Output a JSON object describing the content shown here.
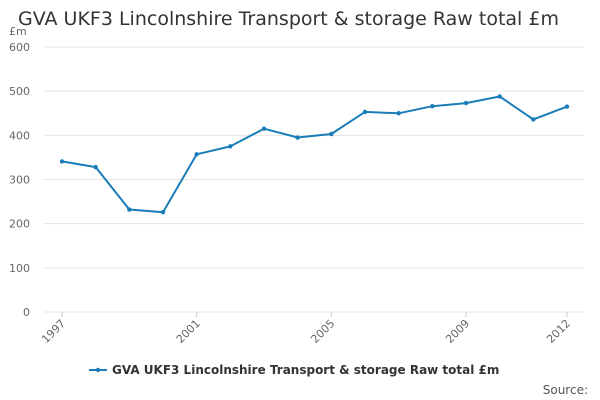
{
  "title": "GVA UKF3 Lincolnshire Transport & storage Raw total £m",
  "unit": "£m",
  "source": "Source:",
  "colors": {
    "series": "#1a7db8",
    "grid": "#e6e6e6",
    "axis_text": "#666666"
  },
  "chart_data": {
    "type": "line",
    "title": "GVA UKF3 Lincolnshire Transport & storage Raw total £m",
    "xlabel": "",
    "ylabel": "£m",
    "xlim": [
      1997,
      2012
    ],
    "ylim": [
      0,
      600
    ],
    "y_ticks": [
      0,
      100,
      200,
      300,
      400,
      500,
      600
    ],
    "x_ticks": [
      "1997",
      "2001",
      "2005",
      "2009",
      "2012"
    ],
    "grid": true,
    "legend_position": "bottom",
    "x": [
      1997,
      1998,
      1999,
      2000,
      2001,
      2002,
      2003,
      2004,
      2005,
      2006,
      2007,
      2008,
      2009,
      2010,
      2011,
      2012
    ],
    "series": [
      {
        "name": "GVA UKF3 Lincolnshire Transport & storage Raw total £m",
        "values": [
          341,
          328,
          232,
          226,
          357,
          375,
          415,
          395,
          403,
          453,
          450,
          466,
          473,
          488,
          436,
          465
        ]
      }
    ]
  }
}
